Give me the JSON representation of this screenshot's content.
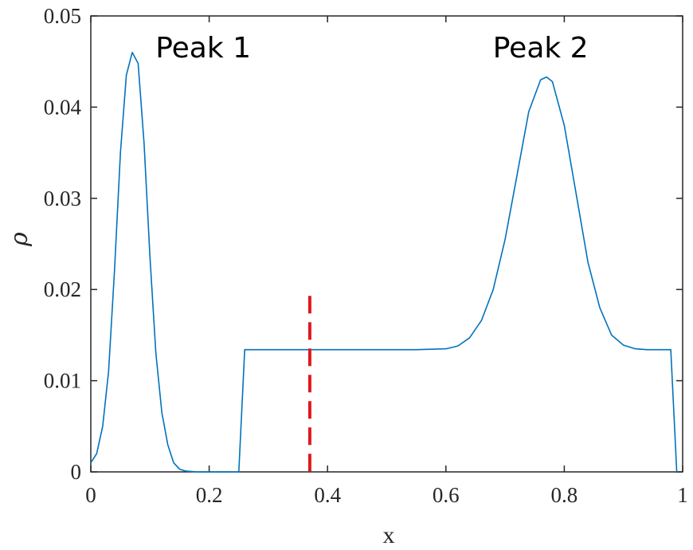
{
  "chart_data": {
    "type": "line",
    "title": "",
    "xlabel": "x",
    "ylabel": "ρ",
    "xlim": [
      0,
      1
    ],
    "ylim": [
      0,
      0.05
    ],
    "xticks": [
      0,
      0.2,
      0.4,
      0.6,
      0.8,
      1
    ],
    "xtick_labels": [
      "0",
      "0.2",
      "0.4",
      "0.6",
      "0.8",
      "1"
    ],
    "yticks": [
      0,
      0.01,
      0.02,
      0.03,
      0.04,
      0.05
    ],
    "ytick_labels": [
      "0",
      "0.01",
      "0.02",
      "0.03",
      "0.04",
      "0.05"
    ],
    "grid": false,
    "series": [
      {
        "color": "#0072BD",
        "x": [
          0,
          0.01,
          0.02,
          0.03,
          0.04,
          0.05,
          0.06,
          0.07,
          0.08,
          0.09,
          0.1,
          0.11,
          0.12,
          0.13,
          0.14,
          0.15,
          0.16,
          0.18,
          0.2,
          0.22,
          0.25,
          0.26,
          0.3,
          0.35,
          0.4,
          0.45,
          0.5,
          0.55,
          0.6,
          0.62,
          0.64,
          0.66,
          0.68,
          0.7,
          0.72,
          0.74,
          0.76,
          0.77,
          0.78,
          0.8,
          0.82,
          0.84,
          0.86,
          0.88,
          0.9,
          0.92,
          0.94,
          0.96,
          0.98,
          0.99
        ],
        "y": [
          0.001,
          0.002,
          0.005,
          0.011,
          0.022,
          0.035,
          0.0435,
          0.046,
          0.0448,
          0.036,
          0.0235,
          0.013,
          0.0065,
          0.003,
          0.001,
          0.0003,
          0.0001,
          0,
          0,
          0,
          0,
          0.0134,
          0.0134,
          0.0134,
          0.0134,
          0.0134,
          0.0134,
          0.0134,
          0.0135,
          0.0138,
          0.0147,
          0.0166,
          0.02,
          0.0255,
          0.0325,
          0.0395,
          0.043,
          0.0433,
          0.0428,
          0.038,
          0.0305,
          0.023,
          0.018,
          0.015,
          0.0139,
          0.0135,
          0.0134,
          0.0134,
          0.0134,
          0
        ]
      }
    ],
    "annotations": [
      {
        "text": "Peak 1",
        "x": 0.19,
        "y": 0.0465
      },
      {
        "text": "Peak 2",
        "x": 0.76,
        "y": 0.0465
      }
    ],
    "reference_line": {
      "x": 0.37,
      "y_range": [
        0,
        0.0193
      ],
      "color": "#E0191E",
      "style": "dashed"
    }
  }
}
